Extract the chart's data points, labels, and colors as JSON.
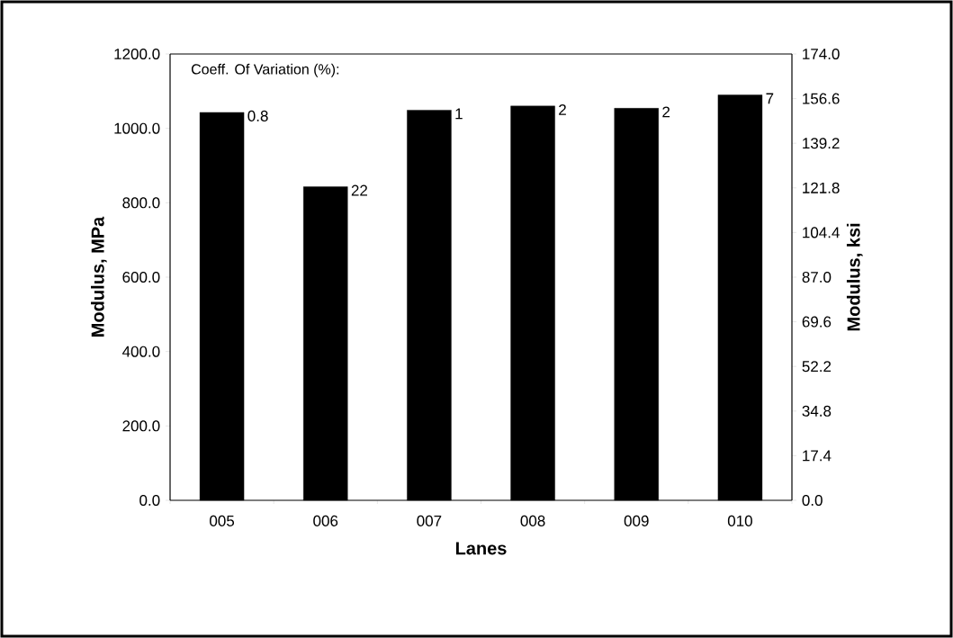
{
  "chart_data": {
    "type": "bar",
    "xlabel": "Lanes",
    "ylabel": "Modulus, MPa",
    "y2label": "Modulus, ksi",
    "categories": [
      "005",
      "006",
      "007",
      "008",
      "009",
      "010"
    ],
    "values": [
      1043,
      843,
      1049,
      1060,
      1054,
      1090
    ],
    "color": "#000000",
    "annotations": [
      "Coeff. Of Variation (%):",
      {
        "text": "0.8",
        "x": "005",
        "y": 1043
      },
      {
        "text": "22",
        "x": "006",
        "y": 843
      },
      {
        "text": "1",
        "x": "007",
        "y": 1049
      },
      {
        "text": "2",
        "x": "008",
        "y": 1060
      },
      {
        "text": "2",
        "x": "009",
        "y": 1054
      },
      {
        "text": "7",
        "x": "010",
        "y": 1090
      }
    ],
    "ylim": [
      0,
      1200
    ],
    "yticks": [
      {
        "value": 0,
        "label": "0.0"
      },
      {
        "value": 200,
        "label": "200.0"
      },
      {
        "value": 400,
        "label": "400.0"
      },
      {
        "value": 600,
        "label": "600.0"
      },
      {
        "value": 800,
        "label": "800.0"
      },
      {
        "value": 1000,
        "label": "1000.0"
      },
      {
        "value": 1200,
        "label": "1200.0"
      }
    ],
    "y2lim": [
      0,
      174
    ],
    "y2ticks": [
      {
        "value": 0,
        "label": "0.0"
      },
      {
        "value": 17.4,
        "label": "17.4"
      },
      {
        "value": 34.8,
        "label": "34.8"
      },
      {
        "value": 52.2,
        "label": "52.2"
      },
      {
        "value": 69.6,
        "label": "69.6"
      },
      {
        "value": 87,
        "label": "87.0"
      },
      {
        "value": 104.4,
        "label": "104.4"
      },
      {
        "value": 121.8,
        "label": "121.8"
      },
      {
        "value": 139.2,
        "label": "139.2"
      },
      {
        "value": 156.6,
        "label": "156.6"
      },
      {
        "value": 174,
        "label": "174.0"
      }
    ],
    "grid": false
  }
}
